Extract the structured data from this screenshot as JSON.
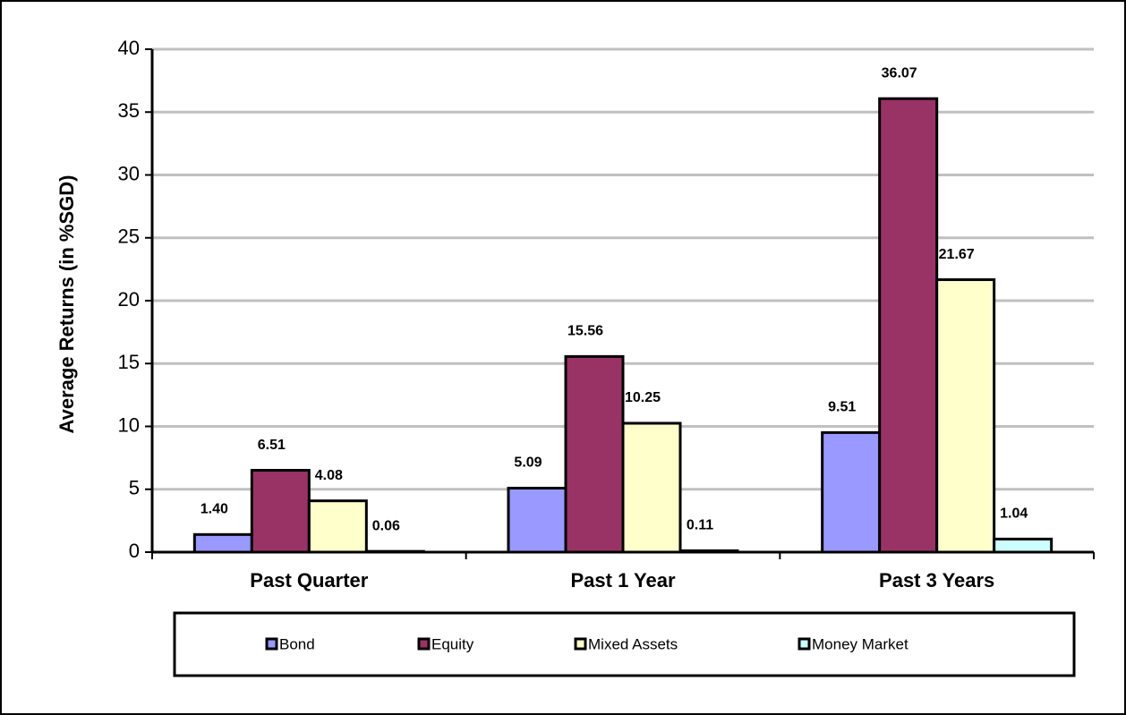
{
  "chart_data": {
    "type": "bar",
    "y_label": "Average Returns (in %SGD)",
    "categories": [
      "Past Quarter",
      "Past 1 Year",
      "Past 3 Years"
    ],
    "series": [
      {
        "name": "Bond",
        "color": "#9999ff",
        "values": [
          1.4,
          5.09,
          9.51
        ],
        "value_labels": [
          "1.40",
          "5.09",
          "9.51"
        ]
      },
      {
        "name": "Equity",
        "color": "#993366",
        "values": [
          6.51,
          15.56,
          36.07
        ],
        "value_labels": [
          "6.51",
          "15.56",
          "36.07"
        ]
      },
      {
        "name": "Mixed Assets",
        "color": "#ffffcc",
        "values": [
          4.08,
          10.25,
          21.67
        ],
        "value_labels": [
          "4.08",
          "10.25",
          "21.67"
        ]
      },
      {
        "name": "Money Market",
        "color": "#ccffff",
        "values": [
          0.06,
          0.11,
          1.04
        ],
        "value_labels": [
          "0.06",
          "0.11",
          "1.04"
        ]
      }
    ],
    "ylim": [
      0,
      40
    ],
    "yticks": [
      0,
      5,
      10,
      15,
      20,
      25,
      30,
      35,
      40
    ],
    "grid": true,
    "legend": "bottom"
  }
}
